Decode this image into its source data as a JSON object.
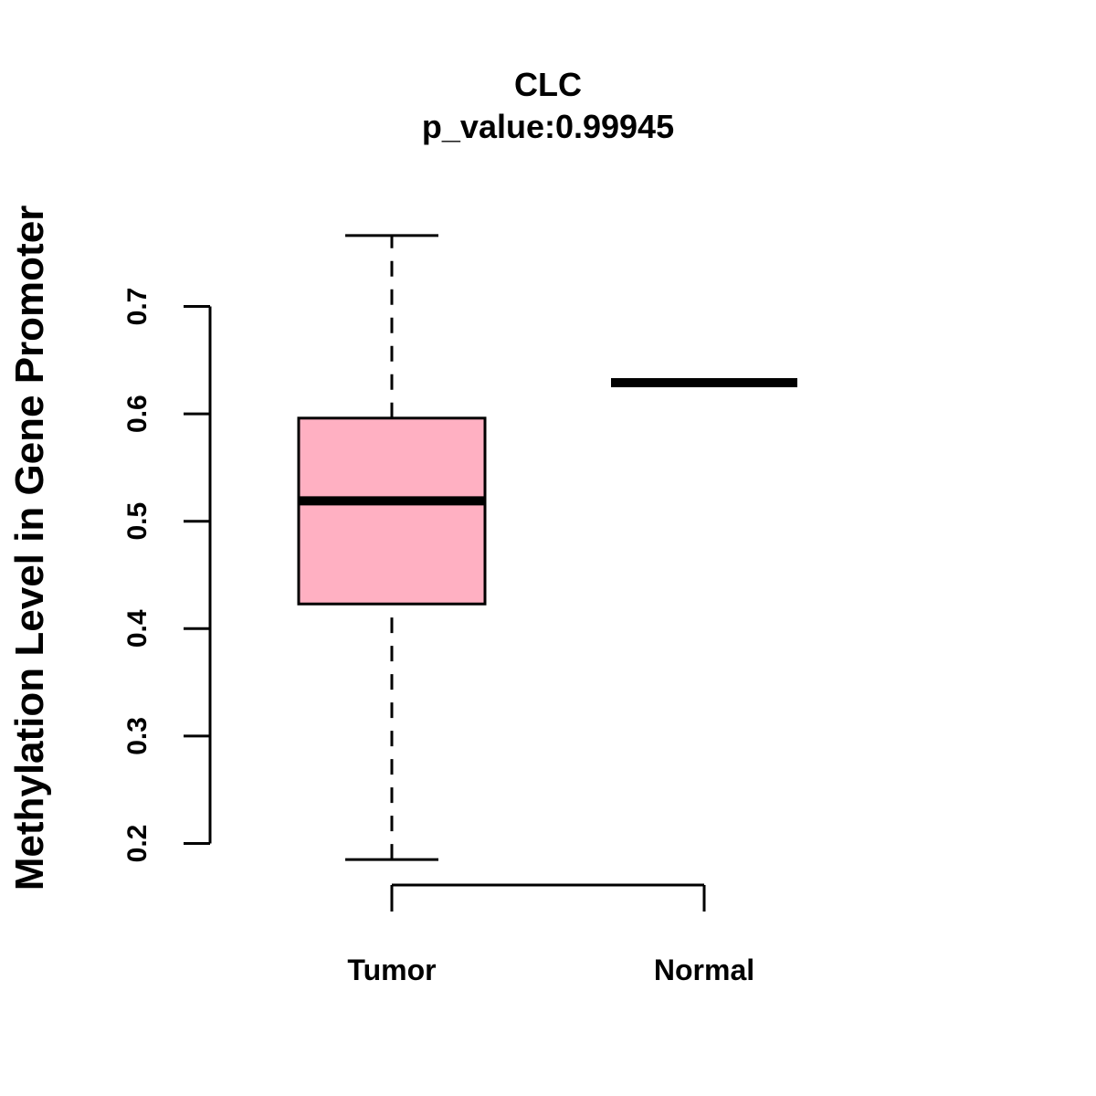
{
  "chart_data": {
    "type": "box",
    "title": "CLC",
    "subtitle": "p_value:0.99945",
    "xlabel": "",
    "ylabel": "Methylation Level in Gene Promoter",
    "categories": [
      "Tumor",
      "Normal"
    ],
    "yticks": [
      "0.2",
      "0.3",
      "0.4",
      "0.5",
      "0.6",
      "0.7"
    ],
    "ylim": [
      0.2,
      0.7
    ],
    "grid": false,
    "legend": "none",
    "series": [
      {
        "category": "Tumor",
        "whisker_low": 0.185,
        "q1": 0.423,
        "median": 0.519,
        "q3": 0.596,
        "whisker_high": 0.766,
        "fill": "#FFB0C2"
      },
      {
        "category": "Normal",
        "whisker_low": 0.629,
        "q1": 0.629,
        "median": 0.629,
        "q3": 0.629,
        "whisker_high": 0.629,
        "fill": "#FFB0C2"
      }
    ]
  }
}
